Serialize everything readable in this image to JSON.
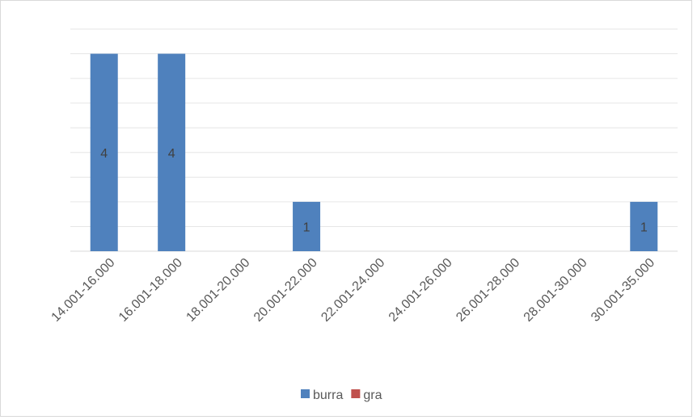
{
  "chart_data": {
    "type": "bar",
    "categories": [
      "14.001-16.000",
      "16.001-18.000",
      "18.001-20.000",
      "20.001-22.000",
      "22.001-24.000",
      "24.001-26.000",
      "26.001-28.000",
      "28.001-30.000",
      "30.001-35.000"
    ],
    "series": [
      {
        "name": "burra",
        "color": "#4f81bd",
        "values": [
          4,
          4,
          null,
          1,
          null,
          null,
          null,
          null,
          1
        ]
      },
      {
        "name": "gra",
        "color": "#c0504d",
        "values": [
          null,
          null,
          null,
          null,
          null,
          null,
          null,
          null,
          null
        ]
      }
    ],
    "ylim": [
      0,
      4.5
    ],
    "yticks": [
      0,
      0.5,
      1,
      1.5,
      2,
      2.5,
      3,
      3.5,
      4,
      4.5
    ],
    "grid": true,
    "legend": "bottom"
  }
}
